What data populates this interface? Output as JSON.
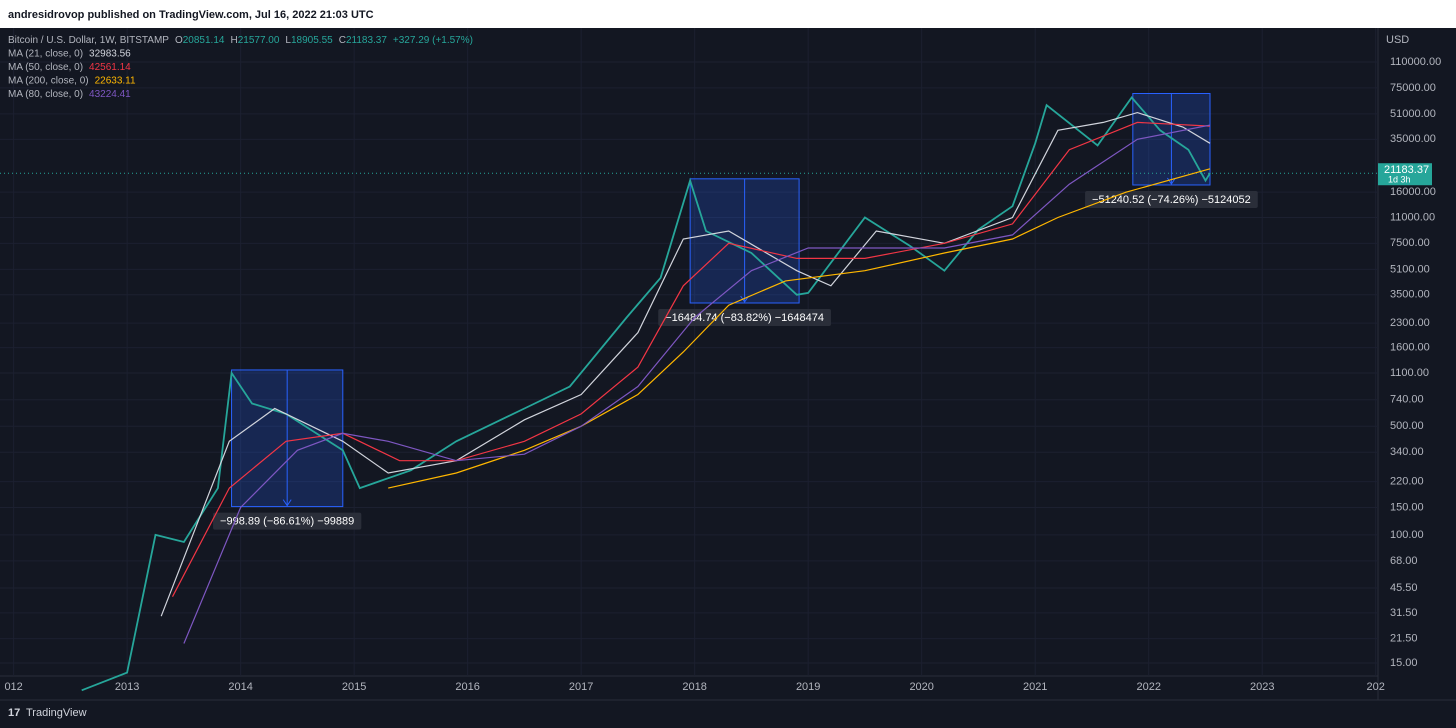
{
  "header": {
    "published": "andresidrovop published on TradingView.com, Jul 16, 2022 21:03 UTC"
  },
  "footer": {
    "brand": "TradingView"
  },
  "chart_data": {
    "type": "line",
    "log_y": true,
    "y_unit": "USD",
    "legend": {
      "symbol": "Bitcoin / U.S. Dollar, 1W, BITSTAMP",
      "ohlc": [
        {
          "key": "O",
          "text": "20851.14"
        },
        {
          "key": "H",
          "text": "21577.00"
        },
        {
          "key": "L",
          "text": "18905.55"
        },
        {
          "key": "C",
          "text": "21183.37"
        }
      ],
      "change": "+327.29 (+1.57%)"
    },
    "last_price": 21183.37,
    "countdown": "1d 3h",
    "xlim": [
      2011.88,
      2024.02
    ],
    "xticks": [
      {
        "value": 2012,
        "label": "012"
      },
      2013,
      2014,
      2015,
      2016,
      2017,
      2018,
      2019,
      2020,
      2021,
      2022,
      2023,
      {
        "value": 2024,
        "label": "202"
      }
    ],
    "ylim": [
      10.05,
      176700
    ],
    "yticks": [
      {
        "value": 15,
        "label": "15.00"
      },
      {
        "value": 21.5,
        "label": "21.50"
      },
      {
        "value": 31.5,
        "label": "31.50"
      },
      {
        "value": 45.5,
        "label": "45.50"
      },
      {
        "value": 68,
        "label": "68.00"
      },
      {
        "value": 100,
        "label": "100.00"
      },
      {
        "value": 150,
        "label": "150.00"
      },
      {
        "value": 220,
        "label": "220.00"
      },
      {
        "value": 340,
        "label": "340.00"
      },
      {
        "value": 500,
        "label": "500.00"
      },
      {
        "value": 740,
        "label": "740.00"
      },
      {
        "value": 1100,
        "label": "1100.00"
      },
      {
        "value": 1600,
        "label": "1600.00"
      },
      {
        "value": 2300,
        "label": "2300.00"
      },
      {
        "value": 3500,
        "label": "3500.00"
      },
      {
        "value": 5100,
        "label": "5100.00"
      },
      {
        "value": 7500,
        "label": "7500.00"
      },
      {
        "value": 11000,
        "label": "11000.00"
      },
      {
        "value": 16000,
        "label": "16000.00"
      },
      {
        "value": 35000,
        "label": "35000.00"
      },
      {
        "value": 51000,
        "label": "51000.00"
      },
      {
        "value": 75000,
        "label": "75000.00"
      },
      {
        "value": 110000,
        "label": "110000.00"
      }
    ],
    "grid": true,
    "series": [
      {
        "name": "Bitcoin / U.S. Dollar",
        "color": "#26a69a",
        "x": [
          2012.6,
          2013.0,
          2013.25,
          2013.5,
          2013.8,
          2013.92,
          2014.1,
          2014.4,
          2014.9,
          2015.05,
          2015.5,
          2015.9,
          2016.5,
          2016.9,
          2017.4,
          2017.7,
          2017.96,
          2018.1,
          2018.5,
          2018.9,
          2019.0,
          2019.5,
          2019.9,
          2020.2,
          2020.5,
          2020.8,
          2021.0,
          2021.1,
          2021.55,
          2021.85,
          2022.1,
          2022.35,
          2022.5,
          2022.54
        ],
        "values": [
          10,
          13,
          100,
          90,
          200,
          1100,
          700,
          600,
          350,
          200,
          260,
          400,
          650,
          900,
          2500,
          4500,
          19000,
          9000,
          6500,
          3500,
          3600,
          11000,
          7200,
          5000,
          9200,
          13000,
          33000,
          58000,
          32000,
          65000,
          40000,
          30000,
          19000,
          21183.37
        ]
      },
      {
        "name": "MA (21, close, 0)",
        "last": 32983.56,
        "color": "#d1d4dc",
        "x": [
          2013.3,
          2013.9,
          2014.3,
          2014.9,
          2015.3,
          2015.9,
          2016.5,
          2017.0,
          2017.5,
          2017.9,
          2018.3,
          2018.9,
          2019.2,
          2019.6,
          2020.2,
          2020.8,
          2021.2,
          2021.6,
          2021.9,
          2022.3,
          2022.54
        ],
        "values": [
          30,
          400,
          650,
          400,
          250,
          300,
          550,
          800,
          2000,
          8000,
          9000,
          5000,
          4000,
          9000,
          7500,
          11000,
          40000,
          45000,
          52000,
          42000,
          32983.56
        ]
      },
      {
        "name": "MA (50, close, 0)",
        "last": 42561.14,
        "color": "#f23645",
        "x": [
          2013.4,
          2013.9,
          2014.4,
          2014.9,
          2015.4,
          2015.9,
          2016.5,
          2017.0,
          2017.5,
          2017.9,
          2018.3,
          2018.9,
          2019.5,
          2020.2,
          2020.8,
          2021.3,
          2021.9,
          2022.54
        ],
        "values": [
          40,
          200,
          400,
          450,
          300,
          300,
          400,
          600,
          1200,
          4000,
          7500,
          6000,
          6000,
          7500,
          10000,
          30000,
          45000,
          42561.14
        ]
      },
      {
        "name": "MA (200, close, 0)",
        "last": 22633.11,
        "color": "#ffb700",
        "x": [
          2015.3,
          2015.9,
          2016.5,
          2017.0,
          2017.5,
          2017.9,
          2018.3,
          2018.8,
          2019.5,
          2020.2,
          2020.8,
          2021.2,
          2021.8,
          2022.54
        ],
        "values": [
          200,
          250,
          350,
          500,
          800,
          1500,
          3000,
          4300,
          5000,
          6500,
          8000,
          11000,
          16000,
          22633.11
        ]
      },
      {
        "name": "MA (80, close, 0)",
        "last": 43224.41,
        "color": "#7e57c2",
        "x": [
          2013.5,
          2014.0,
          2014.5,
          2014.9,
          2015.3,
          2015.9,
          2016.5,
          2017.0,
          2017.5,
          2018.0,
          2018.5,
          2019.0,
          2019.5,
          2020.2,
          2020.8,
          2021.3,
          2021.9,
          2022.54
        ],
        "values": [
          20,
          150,
          350,
          450,
          400,
          300,
          330,
          500,
          900,
          2500,
          5000,
          7000,
          7000,
          7000,
          8500,
          18000,
          35000,
          43224.41
        ]
      }
    ],
    "measures": [
      {
        "x": [
          2013.92,
          2014.9
        ],
        "y": [
          1150,
          152
        ],
        "label": "−998.89 (−86.61%) −99889"
      },
      {
        "x": [
          2017.96,
          2018.92
        ],
        "y": [
          19500,
          3100
        ],
        "label": "−16484.74 (−83.82%) −1648474"
      },
      {
        "x": [
          2021.86,
          2022.54
        ],
        "y": [
          69000,
          17800
        ],
        "label": "−51240.52 (−74.26%) −5124052"
      }
    ]
  }
}
